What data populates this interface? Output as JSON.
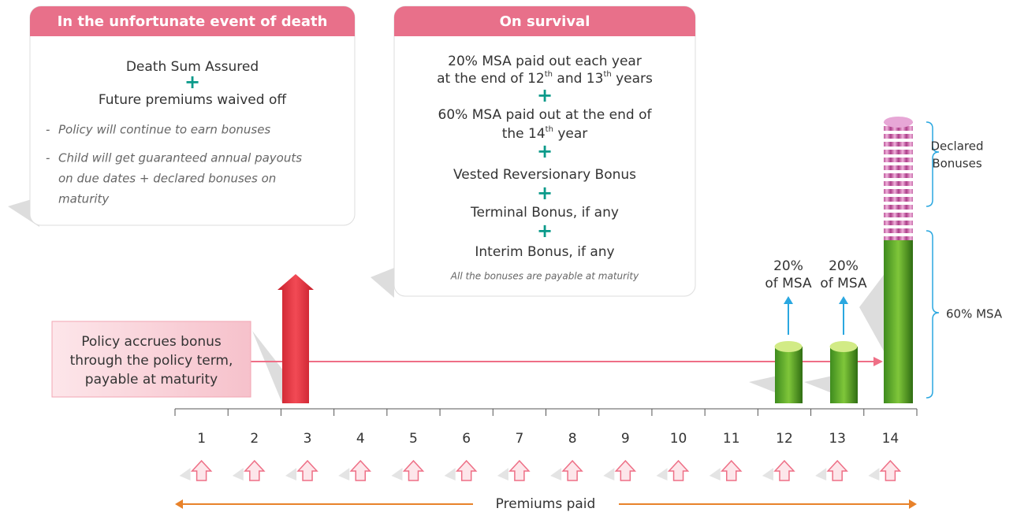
{
  "death_box": {
    "title": "In the unfortunate event of death",
    "items": [
      "Death Sum Assured",
      "Future premiums waived off"
    ],
    "notes": [
      [
        "Policy will continue to earn bonuses"
      ],
      [
        "Child will get guaranteed annual payouts",
        "on due dates + declared bonuses on",
        "maturity"
      ]
    ]
  },
  "survival_box": {
    "title": "On survival",
    "lines": [
      [
        "20% MSA paid out each year"
      ],
      [
        "at the end of 12",
        "th",
        " and 13",
        "th",
        " years"
      ],
      [
        "60% MSA paid out at the end of"
      ],
      [
        "the 14",
        "th",
        " year"
      ],
      [
        "Vested Reversionary Bonus"
      ],
      [
        "Terminal Bonus, if any"
      ],
      [
        "Interim Bonus, if any"
      ]
    ],
    "note": "All the bonuses are payable at maturity"
  },
  "accrual_box": {
    "lines": [
      "Policy accrues bonus",
      "through the policy term,",
      "payable at maturity"
    ]
  },
  "payouts": [
    {
      "lines": [
        "20%",
        "of MSA"
      ]
    },
    {
      "lines": [
        "20%",
        "of MSA"
      ]
    }
  ],
  "declared_bonuses": [
    "Declared",
    "Bonuses"
  ],
  "msa_label": "60% MSA",
  "years": [
    "1",
    "2",
    "3",
    "4",
    "5",
    "6",
    "7",
    "8",
    "9",
    "10",
    "11",
    "12",
    "13",
    "14"
  ],
  "footer": "Premiums paid"
}
